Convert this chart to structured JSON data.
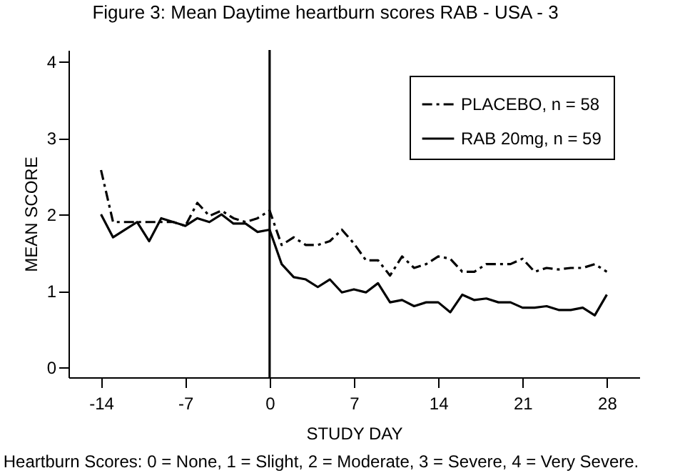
{
  "chart_data": {
    "type": "line",
    "title": "Figure 3: Mean Daytime heartburn scores RAB - USA - 3",
    "xlabel": "STUDY DAY",
    "ylabel": "MEAN SCORE",
    "x": [
      -14,
      -13,
      -12,
      -11,
      -10,
      -9,
      -8,
      -7,
      -6,
      -5,
      -4,
      -3,
      -2,
      -1,
      0,
      1,
      2,
      3,
      4,
      5,
      6,
      7,
      8,
      9,
      10,
      11,
      12,
      13,
      14,
      15,
      16,
      17,
      18,
      19,
      20,
      21,
      22,
      23,
      24,
      25,
      26,
      27,
      28
    ],
    "series": [
      {
        "name": "PLACEBO, n = 58",
        "color": "#000000",
        "line_style": "dashed",
        "values": [
          2.58,
          1.9,
          1.9,
          1.9,
          1.9,
          1.9,
          1.9,
          1.85,
          2.15,
          1.98,
          2.05,
          1.95,
          1.9,
          1.95,
          2.05,
          1.6,
          1.7,
          1.6,
          1.6,
          1.65,
          1.8,
          1.62,
          1.4,
          1.4,
          1.2,
          1.45,
          1.3,
          1.35,
          1.45,
          1.42,
          1.25,
          1.25,
          1.35,
          1.35,
          1.35,
          1.42,
          1.25,
          1.3,
          1.28,
          1.3,
          1.3,
          1.35,
          1.25
        ]
      },
      {
        "name": "RAB 20mg, n = 59",
        "color": "#000000",
        "line_style": "solid",
        "values": [
          2.0,
          1.7,
          1.8,
          1.9,
          1.65,
          1.95,
          1.9,
          1.85,
          1.95,
          1.9,
          2.0,
          1.88,
          1.88,
          1.77,
          1.8,
          1.35,
          1.18,
          1.15,
          1.05,
          1.15,
          0.98,
          1.02,
          0.98,
          1.1,
          0.85,
          0.88,
          0.8,
          0.85,
          0.85,
          0.72,
          0.95,
          0.88,
          0.9,
          0.85,
          0.85,
          0.78,
          0.78,
          0.8,
          0.75,
          0.75,
          0.78,
          0.68,
          0.95
        ]
      }
    ],
    "xlim": [
      -16.7,
      30.7
    ],
    "xticks": [
      -14,
      -7,
      0,
      7,
      14,
      21,
      28
    ],
    "ylim": [
      -0.13,
      4.15
    ],
    "yticks": [
      0,
      1,
      2,
      3,
      4
    ],
    "ref_lines": [
      {
        "axis": "x",
        "value": 0
      }
    ],
    "annotations": [
      "Heartburn Scores: 0 = None, 1 = Slight, 2 = Moderate, 3 = Severe, 4 = Very Severe."
    ],
    "legend": "top right",
    "grid": false
  }
}
